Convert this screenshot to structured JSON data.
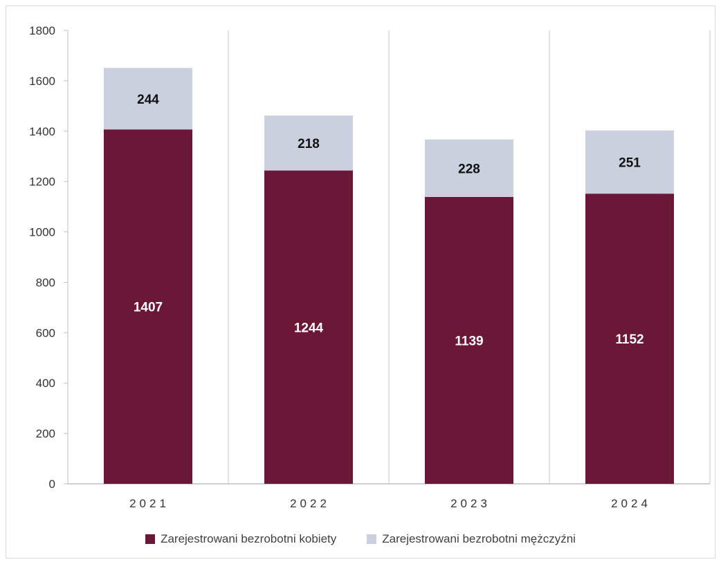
{
  "chart_data": {
    "type": "bar",
    "stacked": true,
    "title": "",
    "xlabel": "",
    "ylabel": "",
    "categories": [
      "2021",
      "2022",
      "2023",
      "2024"
    ],
    "ylim": [
      0,
      1800
    ],
    "yticks": [
      0,
      200,
      400,
      600,
      800,
      1000,
      1200,
      1400,
      1600,
      1800
    ],
    "grid": "vertical category separators",
    "legend_position": "bottom",
    "series": [
      {
        "name": "Zarejestrowani bezrobotni kobiety",
        "values": [
          1407,
          1244,
          1139,
          1152
        ],
        "color": "#6b1838",
        "label_color": "#ffffff"
      },
      {
        "name": "Zarejestrowani bezrobotni mężczyźni",
        "values": [
          244,
          218,
          228,
          251
        ],
        "color": "#cbd0df",
        "label_color": "#111111"
      }
    ]
  },
  "legend": {
    "women_label": "Zarejestrowani bezrobotni kobiety",
    "men_label": "Zarejestrowani bezrobotni mężczyźni"
  }
}
